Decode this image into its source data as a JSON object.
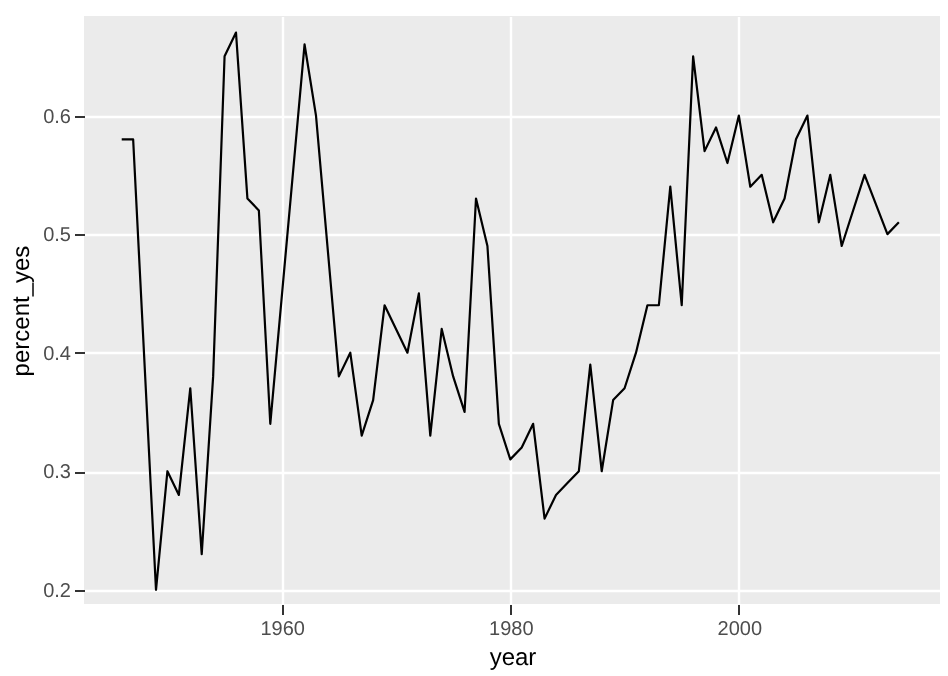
{
  "chart_data": {
    "type": "line",
    "xlabel": "year",
    "ylabel": "percent_yes",
    "x": [
      1946,
      1947,
      1949,
      1950,
      1951,
      1952,
      1953,
      1954,
      1955,
      1956,
      1957,
      1958,
      1959,
      1962,
      1963,
      1965,
      1966,
      1967,
      1968,
      1969,
      1971,
      1972,
      1973,
      1974,
      1975,
      1976,
      1977,
      1978,
      1979,
      1980,
      1981,
      1982,
      1983,
      1984,
      1985,
      1986,
      1987,
      1988,
      1989,
      1990,
      1991,
      1992,
      1993,
      1994,
      1995,
      1996,
      1997,
      1998,
      1999,
      2000,
      2001,
      2002,
      2003,
      2004,
      2005,
      2006,
      2007,
      2008,
      2009,
      2011,
      2013,
      2014
    ],
    "series": [
      {
        "color": "#000000",
        "values": [
          0.58,
          0.58,
          0.2,
          0.3,
          0.28,
          0.37,
          0.23,
          0.38,
          0.65,
          0.67,
          0.53,
          0.52,
          0.34,
          0.66,
          0.6,
          0.38,
          0.4,
          0.33,
          0.36,
          0.44,
          0.4,
          0.45,
          0.33,
          0.42,
          0.38,
          0.35,
          0.53,
          0.49,
          0.34,
          0.31,
          0.32,
          0.34,
          0.26,
          0.28,
          0.29,
          0.3,
          0.39,
          0.3,
          0.36,
          0.37,
          0.4,
          0.44,
          0.44,
          0.54,
          0.44,
          0.65,
          0.57,
          0.59,
          0.56,
          0.6,
          0.54,
          0.55,
          0.51,
          0.53,
          0.58,
          0.6,
          0.51,
          0.55,
          0.49,
          0.55,
          0.5,
          0.51
        ]
      }
    ],
    "xlim": [
      1942.7,
      2017.6
    ],
    "xticks": [
      1960,
      1980,
      2000
    ],
    "ylim": [
      0.188,
      0.684
    ],
    "yticks": [
      0.2,
      0.3,
      0.4,
      0.5,
      0.6
    ],
    "grid": true,
    "legend": false
  }
}
